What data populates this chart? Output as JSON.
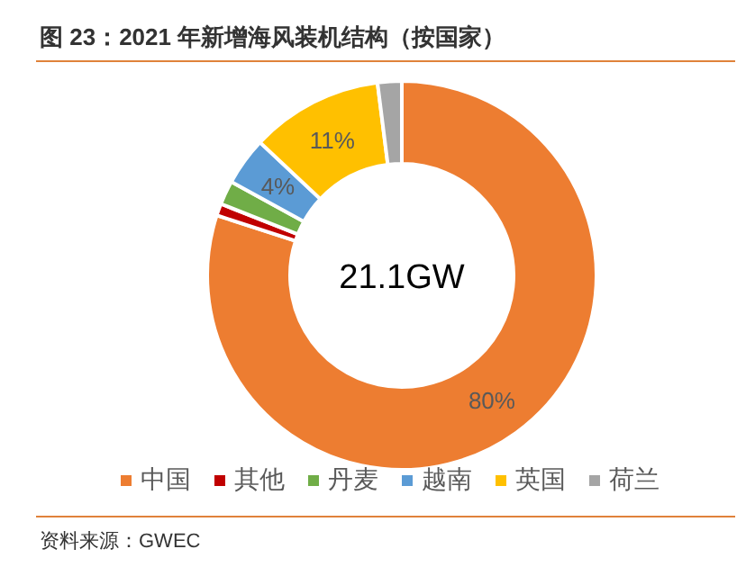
{
  "chart_data": {
    "type": "donut",
    "title": "图 23：2021 年新增海风装机结构（按国家）",
    "categories": [
      "中国",
      "其他",
      "丹麦",
      "越南",
      "英国",
      "荷兰"
    ],
    "values": [
      80,
      1,
      2,
      4,
      11,
      2
    ],
    "colors": [
      "#ed7d31",
      "#c00000",
      "#70ad47",
      "#5b9bd5",
      "#ffc000",
      "#a5a5a5"
    ],
    "value_labels": [
      "80%",
      null,
      null,
      "4%",
      "11%",
      null
    ],
    "legend": "bottom",
    "annotations": [
      "21.1GW",
      "资料来源：GWEC"
    ]
  }
}
